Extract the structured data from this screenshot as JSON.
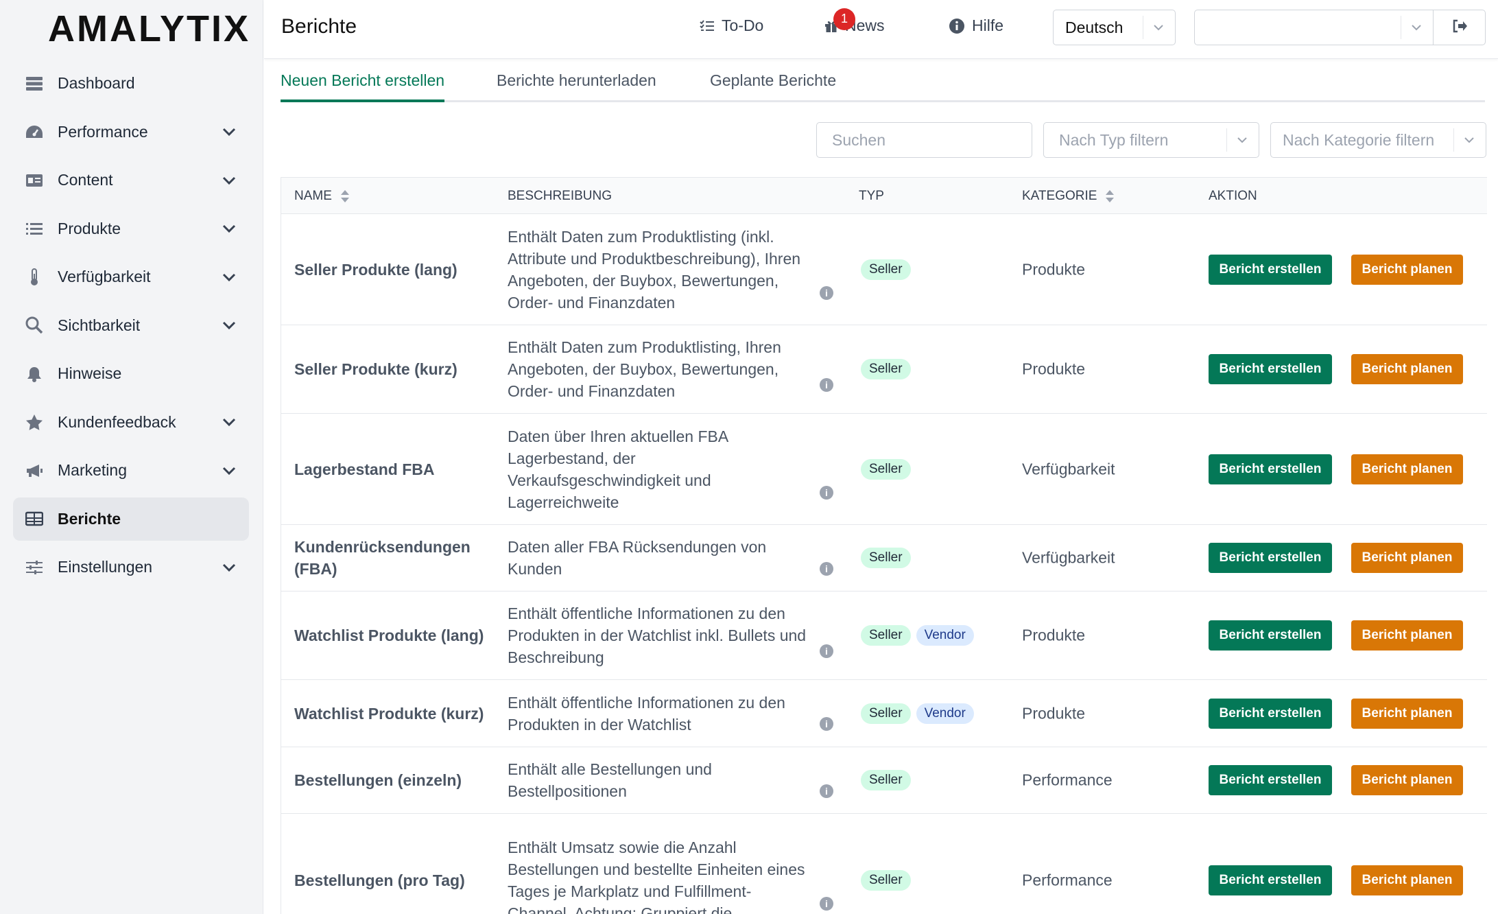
{
  "brand": {
    "logo": "AMALYTIX"
  },
  "sidebar": {
    "items": [
      {
        "label": "Dashboard",
        "icon": "dashboard-icon",
        "expandable": false,
        "active": false
      },
      {
        "label": "Performance",
        "icon": "gauge-icon",
        "expandable": true,
        "active": false
      },
      {
        "label": "Content",
        "icon": "id-card-icon",
        "expandable": true,
        "active": false
      },
      {
        "label": "Produkte",
        "icon": "list-icon",
        "expandable": true,
        "active": false
      },
      {
        "label": "Verfügbarkeit",
        "icon": "thermometer-icon",
        "expandable": true,
        "active": false
      },
      {
        "label": "Sichtbarkeit",
        "icon": "search-icon",
        "expandable": true,
        "active": false
      },
      {
        "label": "Hinweise",
        "icon": "bell-icon",
        "expandable": false,
        "active": false
      },
      {
        "label": "Kundenfeedback",
        "icon": "star-icon",
        "expandable": true,
        "active": false
      },
      {
        "label": "Marketing",
        "icon": "megaphone-icon",
        "expandable": true,
        "active": false
      },
      {
        "label": "Berichte",
        "icon": "table-icon",
        "expandable": false,
        "active": true
      },
      {
        "label": "Einstellungen",
        "icon": "sliders-icon",
        "expandable": true,
        "active": false
      }
    ]
  },
  "header": {
    "title": "Berichte",
    "todo_label": "To-Do",
    "news_label": "News",
    "news_badge": "1",
    "help_label": "Hilfe",
    "language": "Deutsch",
    "account": ""
  },
  "tabs": [
    {
      "label": "Neuen Bericht erstellen",
      "active": true
    },
    {
      "label": "Berichte herunterladen",
      "active": false
    },
    {
      "label": "Geplante Berichte",
      "active": false
    }
  ],
  "filters": {
    "search_placeholder": "Suchen",
    "type_placeholder": "Nach Typ filtern",
    "category_placeholder": "Nach Kategorie filtern"
  },
  "table": {
    "headers": {
      "name": "Name",
      "description": "Beschreibung",
      "type": "Typ",
      "category": "Kategorie",
      "action": "Aktion"
    },
    "create_label": "Bericht erstellen",
    "plan_label": "Bericht planen",
    "rows": [
      {
        "name": "Seller Produkte (lang)",
        "description": "Enthält Daten zum Produktlisting (inkl. Attribute und Produktbeschreibung), Ihren Angeboten, der Buybox, Bewertungen, Order- und Finanzdaten",
        "types": [
          "Seller"
        ],
        "category": "Produkte"
      },
      {
        "name": "Seller Produkte (kurz)",
        "description": "Enthält Daten zum Produktlisting, Ihren Angeboten, der Buybox, Bewertungen, Order- und Finanzdaten",
        "types": [
          "Seller"
        ],
        "category": "Produkte"
      },
      {
        "name": "Lagerbestand FBA",
        "description": "Daten über Ihren aktuellen FBA Lagerbestand, der Verkaufsgeschwindigkeit und Lagerreichweite",
        "types": [
          "Seller"
        ],
        "category": "Verfügbarkeit"
      },
      {
        "name": "Kundenrücksendungen (FBA)",
        "description": "Daten aller FBA Rücksendungen von Kunden",
        "types": [
          "Seller"
        ],
        "category": "Verfügbarkeit"
      },
      {
        "name": "Watchlist Produkte (lang)",
        "description": "Enthält öffentliche Informationen zu den Produkten in der Watchlist inkl. Bullets und Beschreibung",
        "types": [
          "Seller",
          "Vendor"
        ],
        "category": "Produkte"
      },
      {
        "name": "Watchlist Produkte (kurz)",
        "description": "Enthält öffentliche Informationen zu den Produkten in der Watchlist",
        "types": [
          "Seller",
          "Vendor"
        ],
        "category": "Produkte"
      },
      {
        "name": "Bestellungen (einzeln)",
        "description": "Enthält alle Bestellungen und Bestellpositionen",
        "types": [
          "Seller"
        ],
        "category": "Performance"
      },
      {
        "name": "Bestellungen (pro Tag)",
        "description": "Enthält Umsatz sowie die Anzahl Bestellungen und bestellte Einheiten eines Tages je Markplatz und Fulfillment-Channel. Achtung: Gruppiert die",
        "types": [
          "Seller"
        ],
        "category": "Performance"
      }
    ]
  },
  "colors": {
    "primary": "#047857",
    "accent": "#d97706",
    "seller_pill": "#d1fae5",
    "vendor_pill": "#dbeafe",
    "badge": "#dc2626"
  }
}
